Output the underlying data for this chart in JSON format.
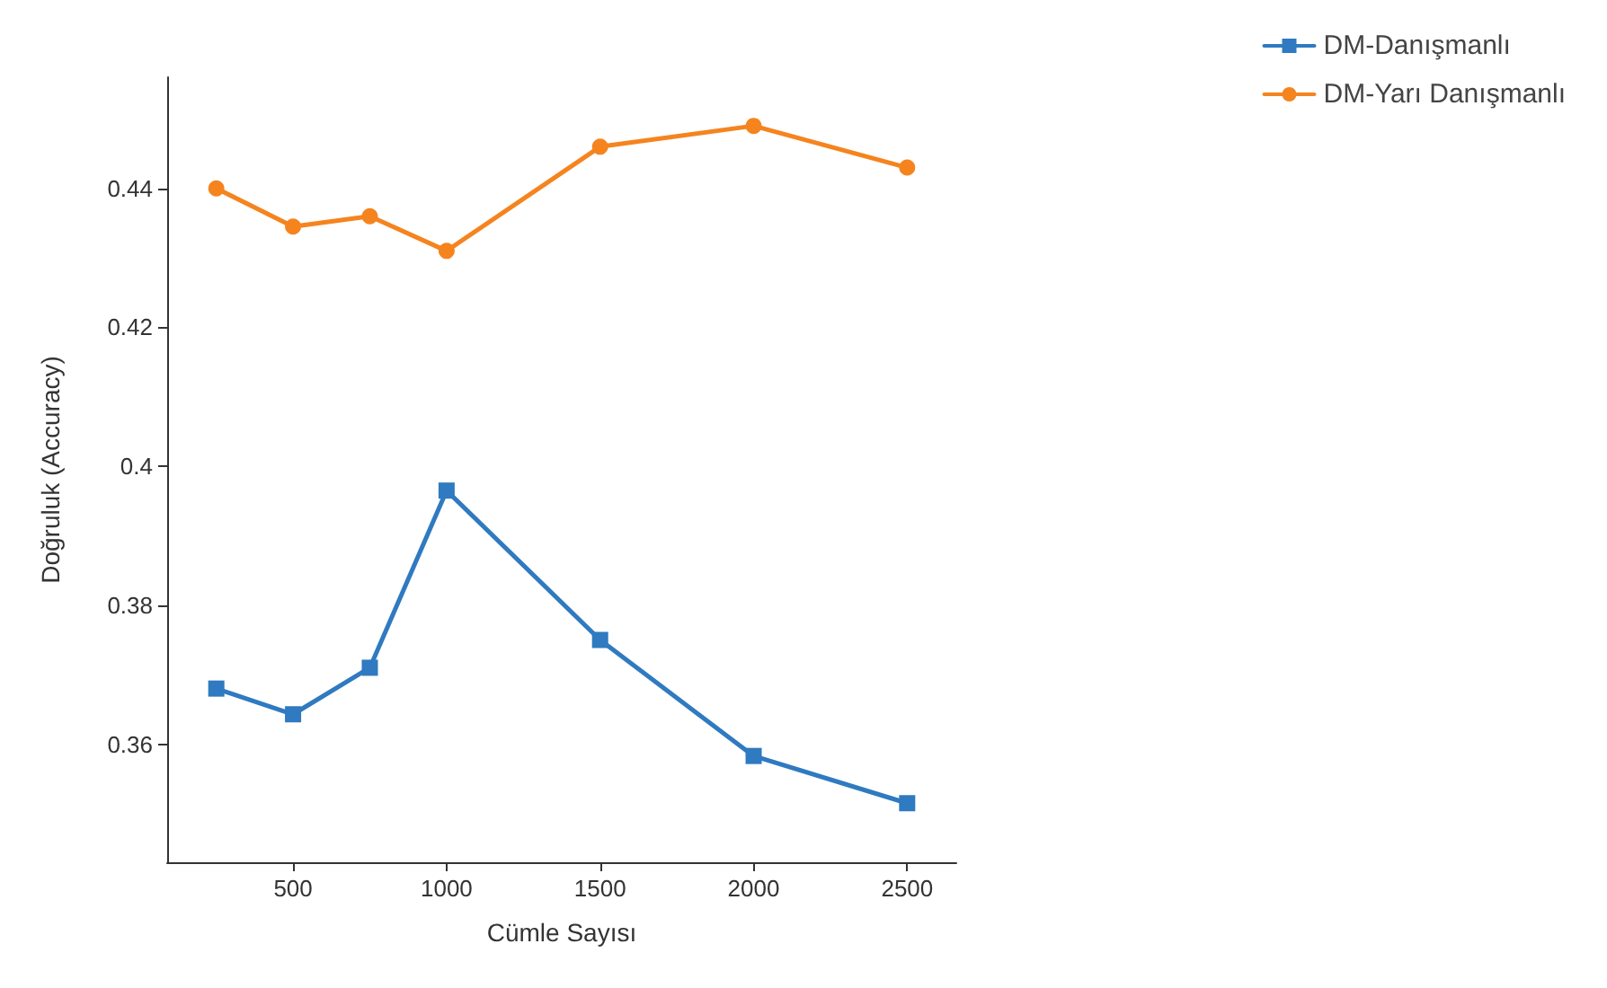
{
  "chart_data": {
    "type": "line",
    "xlabel": "Cümle Sayısı",
    "ylabel": "Doğruluk (Accuracy)",
    "x": [
      250,
      500,
      750,
      1000,
      1500,
      2000,
      2500
    ],
    "series": [
      {
        "name": "DM-Danışmanlı",
        "color": "#2f7ac0",
        "marker": "square",
        "values": [
          0.368,
          0.3643,
          0.371,
          0.3965,
          0.375,
          0.3583,
          0.3515
        ]
      },
      {
        "name": "DM-Yarı Danışmanlı",
        "color": "#f5841f",
        "marker": "circle",
        "values": [
          0.44,
          0.4345,
          0.436,
          0.431,
          0.446,
          0.449,
          0.443
        ]
      }
    ],
    "xlim": [
      90,
      2660
    ],
    "xticks": [
      500,
      1000,
      1500,
      2000,
      2500
    ],
    "ylim": [
      0.343,
      0.456
    ],
    "yticks": [
      0.36,
      0.38,
      0.4,
      0.42,
      0.44
    ],
    "grid": false,
    "legend": "top right"
  }
}
